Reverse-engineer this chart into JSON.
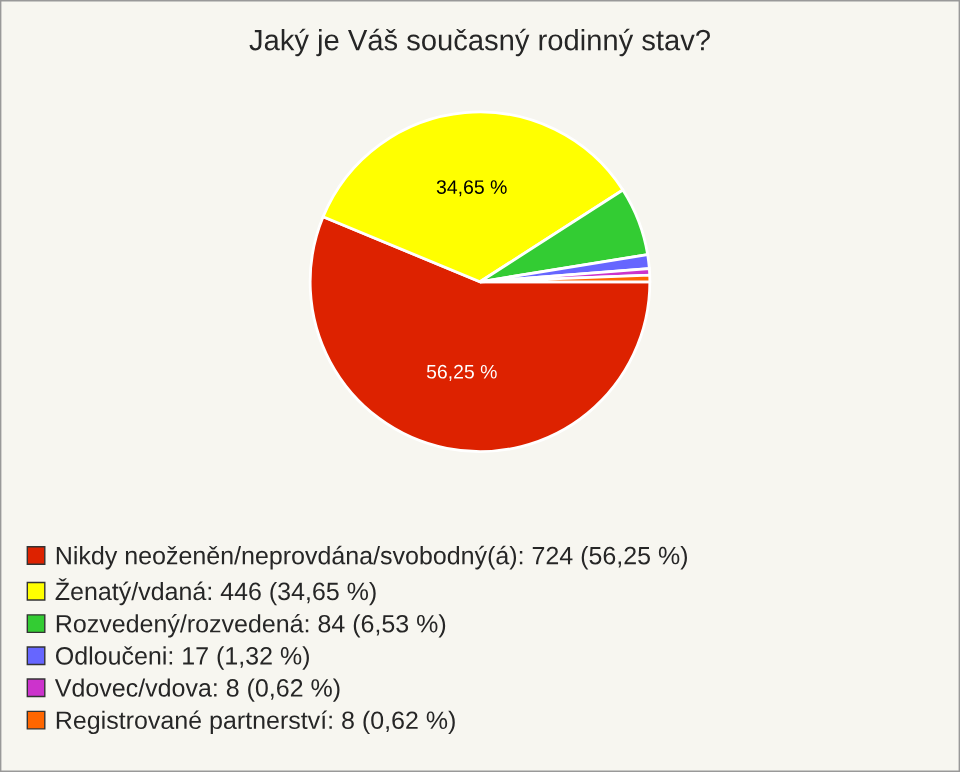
{
  "chart_data": {
    "type": "pie",
    "title": "Jaký je Váš současný rodinný stav?",
    "categories": [
      "Nikdy neoženěn/neprovdána/svobodný(á): 724 (56,25 %)",
      "Ženatý/vdaná: 446 (34,65 %)",
      "Rozvedený/rozvedená: 84 (6,53 %)",
      "Odloučeni: 17 (1,32 %)",
      "Vdovec/vdova: 8 (0,62 %)",
      "Registrované partnerství: 8 (0,62 %)"
    ],
    "values": [
      56.25,
      34.65,
      6.53,
      1.32,
      0.62,
      0.62
    ],
    "colors": [
      "#dd2200",
      "#ffff00",
      "#33cc33",
      "#6666ff",
      "#cc33cc",
      "#ff6600"
    ],
    "value_labels": [
      "56,25 %",
      "34,65 %",
      null,
      null,
      null,
      null
    ],
    "legend": "bottom left"
  }
}
